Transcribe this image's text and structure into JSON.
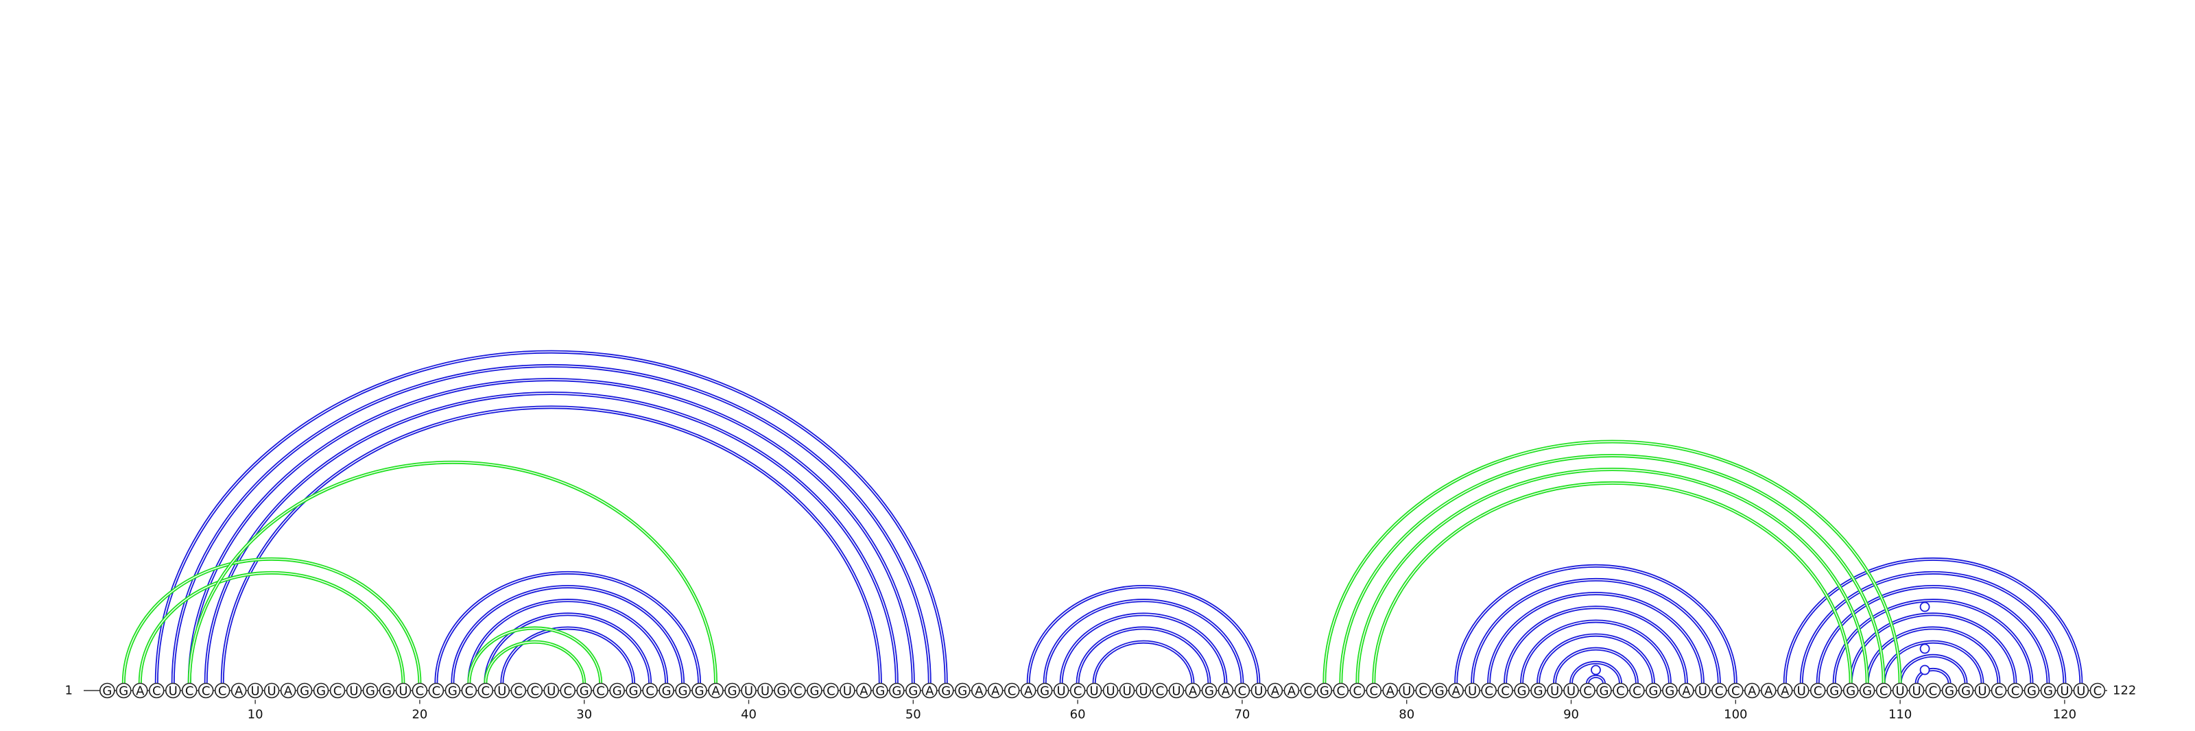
{
  "sequence": "GGACUCCCAUUAGGCUGGUCCGCCUCCUCGCGGCGGGAGUUGCGCUAGGGAGGAACAGUCUUUUCUAGACUAACGCCCAUCGAUCCGGUUCGCCGGAUCCAAAUCGGGCUUCGGUCCGGUUC",
  "start_label": "1",
  "end_label": "122",
  "tick_labels": [
    "10",
    "20",
    "30",
    "40",
    "50",
    "60",
    "70",
    "80",
    "90",
    "100",
    "110",
    "120"
  ],
  "colors": {
    "blue": "#1a1adb",
    "green": "#22e022"
  },
  "arc_groups": [
    {
      "color": "blue",
      "pairs": [
        [
          4,
          52
        ],
        [
          5,
          51
        ],
        [
          6,
          50
        ],
        [
          7,
          49
        ],
        [
          8,
          48
        ]
      ]
    },
    {
      "color": "blue",
      "pairs": [
        [
          21,
          37
        ],
        [
          22,
          36
        ],
        [
          23,
          35
        ],
        [
          24,
          34
        ],
        [
          25,
          33
        ]
      ]
    },
    {
      "color": "blue",
      "pairs": [
        [
          57,
          71
        ],
        [
          58,
          70
        ],
        [
          59,
          69
        ],
        [
          60,
          68
        ],
        [
          61,
          67
        ]
      ]
    },
    {
      "color": "blue",
      "pairs": [
        [
          83,
          100
        ],
        [
          84,
          99
        ],
        [
          85,
          98
        ],
        [
          86,
          97
        ],
        [
          87,
          96
        ],
        [
          88,
          95
        ],
        [
          89,
          94
        ],
        [
          90,
          93
        ],
        [
          91,
          92
        ]
      ]
    },
    {
      "color": "blue",
      "pairs": [
        [
          103,
          121
        ],
        [
          104,
          120
        ],
        [
          105,
          119
        ],
        [
          106,
          118
        ],
        [
          107,
          117
        ],
        [
          108,
          116
        ],
        [
          109,
          115
        ],
        [
          110,
          114
        ],
        [
          111,
          113
        ]
      ]
    },
    {
      "color": "green",
      "pairs": [
        [
          2,
          20
        ],
        [
          3,
          19
        ]
      ]
    },
    {
      "color": "green",
      "pairs": [
        [
          6,
          38
        ]
      ]
    },
    {
      "color": "green",
      "pairs": [
        [
          23,
          31
        ],
        [
          24,
          30
        ]
      ]
    },
    {
      "color": "green",
      "pairs": [
        [
          75,
          110
        ],
        [
          76,
          109
        ],
        [
          77,
          108
        ],
        [
          78,
          107
        ]
      ]
    }
  ],
  "hairpin_markers": [
    91,
    111
  ]
}
